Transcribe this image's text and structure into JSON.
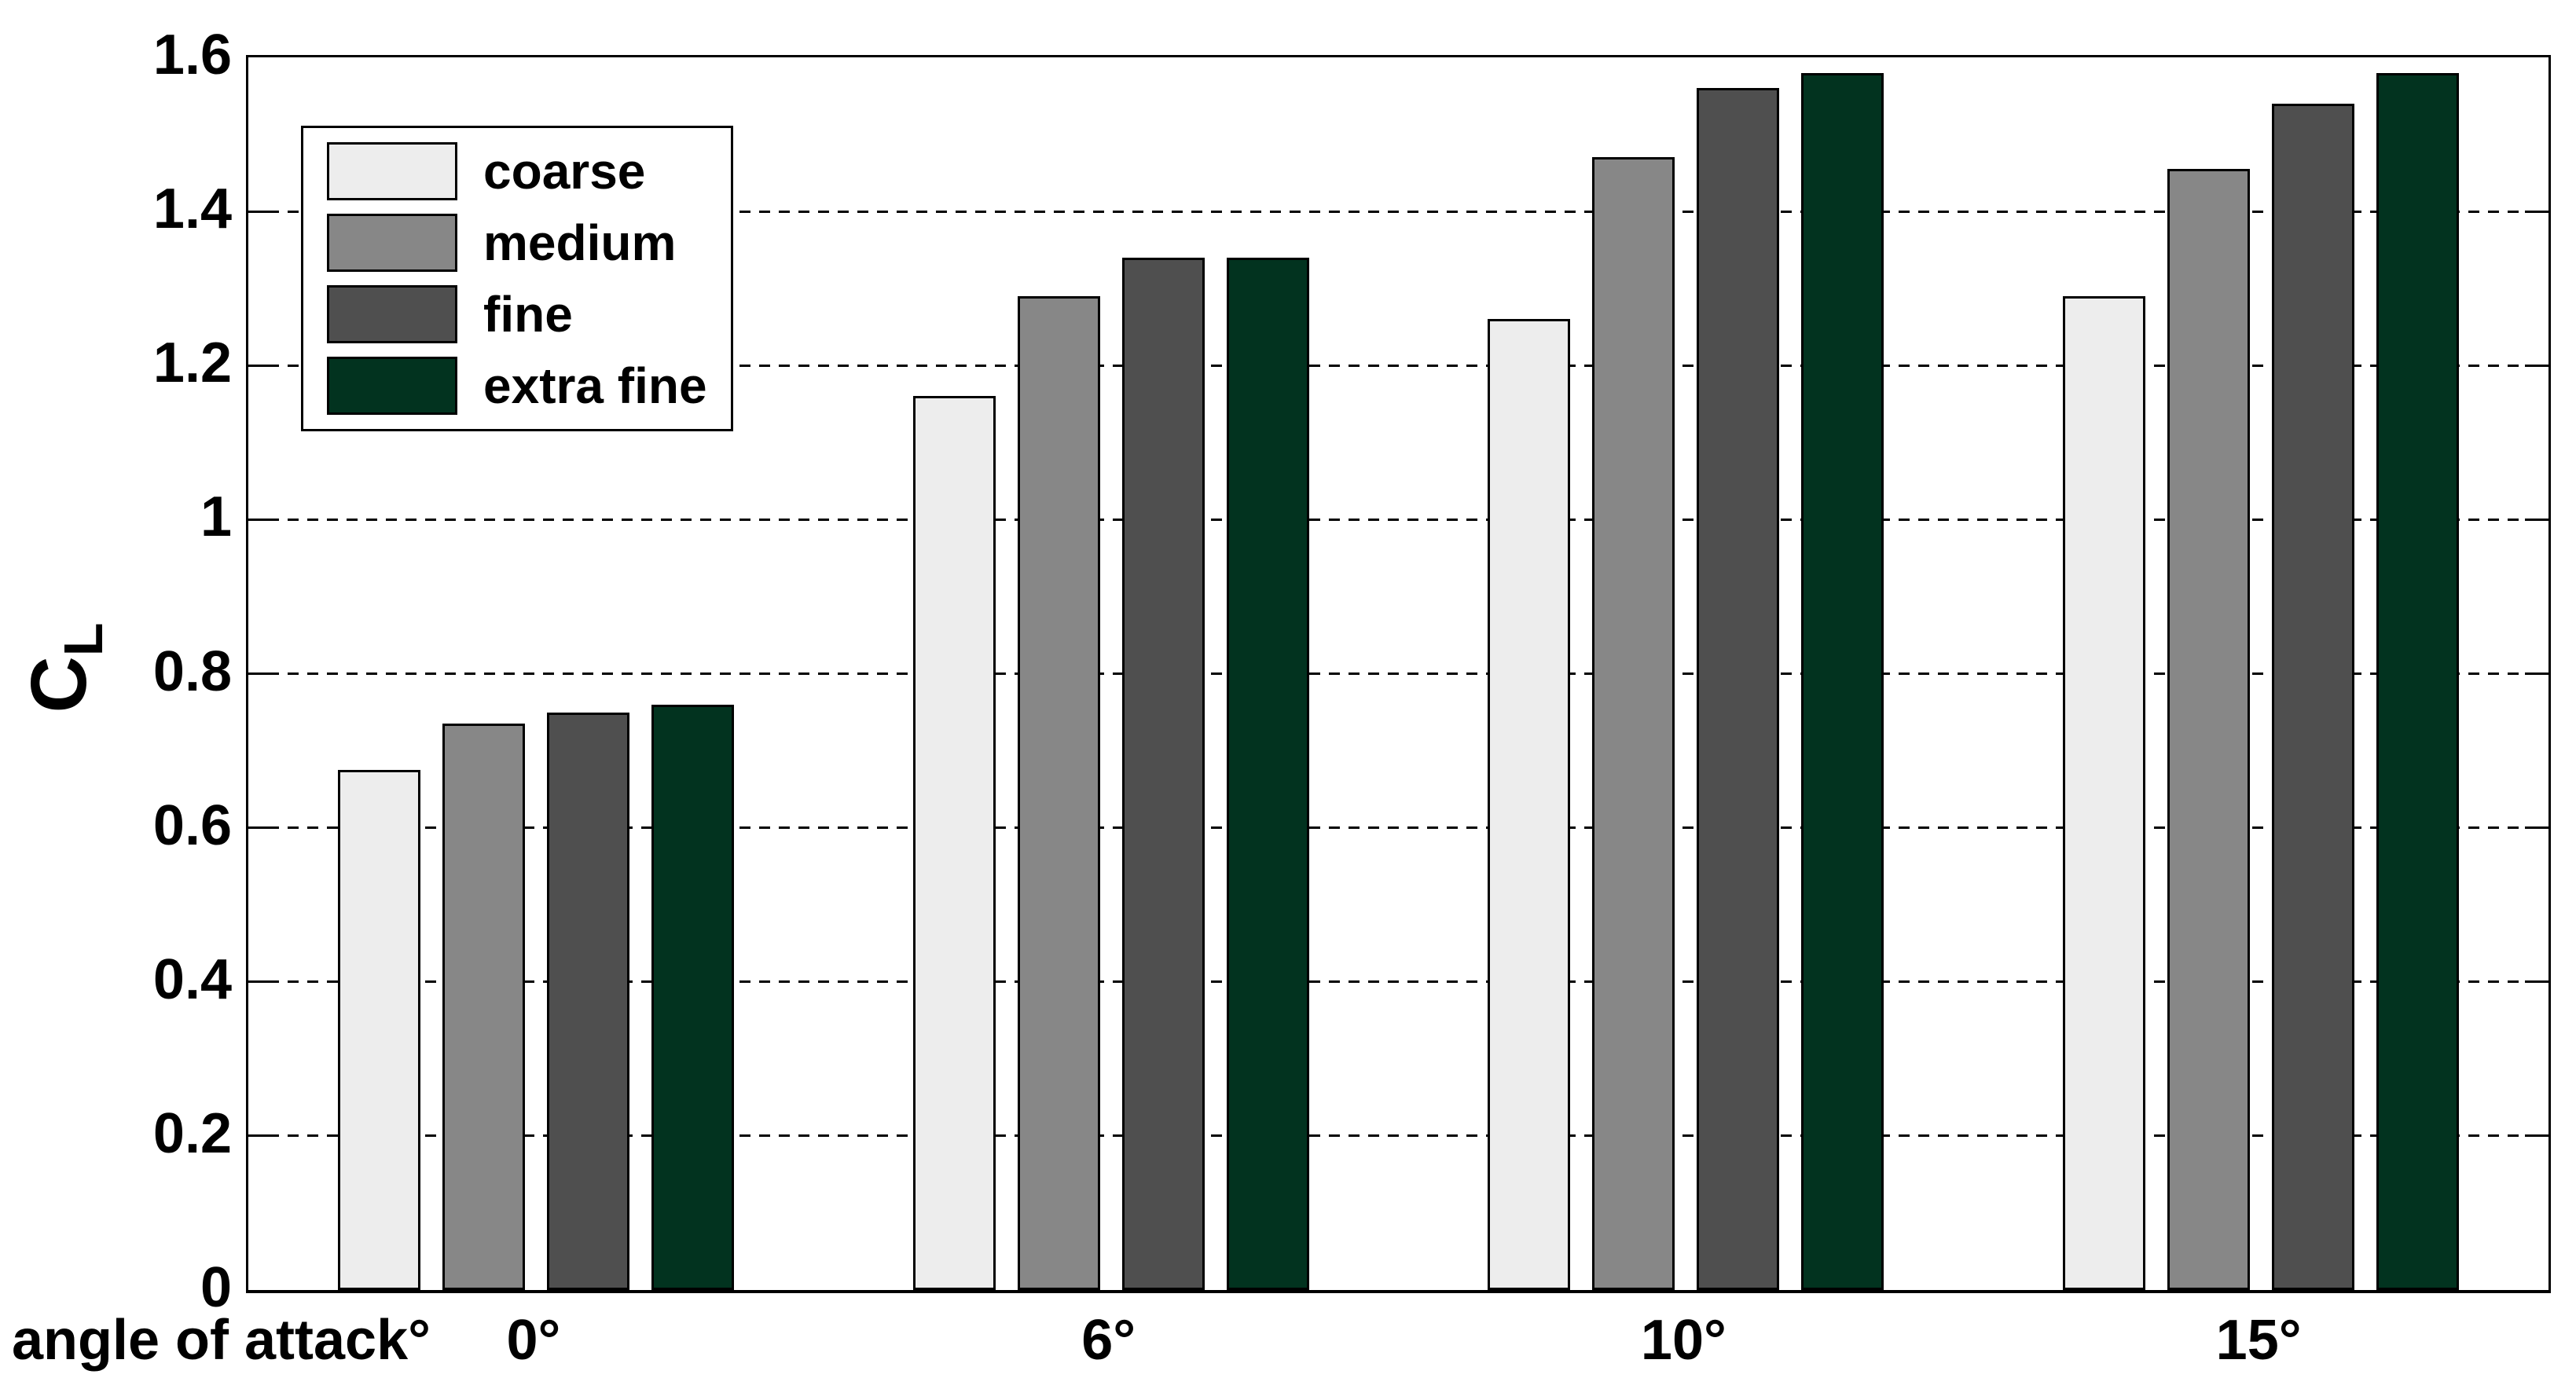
{
  "chart_data": {
    "type": "bar",
    "title": "",
    "xlabel": "angle of attack°",
    "ylabel_base": "C",
    "ylabel_sub": "L",
    "categories": [
      "0°",
      "6°",
      "10°",
      "15°"
    ],
    "series": [
      {
        "name": "coarse",
        "color": "#ededed",
        "values": [
          0.675,
          1.16,
          1.26,
          1.29
        ]
      },
      {
        "name": "medium",
        "color": "#878787",
        "values": [
          0.735,
          1.29,
          1.47,
          1.455
        ]
      },
      {
        "name": "fine",
        "color": "#4f4f4f",
        "values": [
          0.75,
          1.34,
          1.56,
          1.54
        ]
      },
      {
        "name": "extra fine",
        "color": "#02331f",
        "values": [
          0.76,
          1.34,
          1.58,
          1.58
        ]
      }
    ],
    "ylim": [
      0,
      1.6
    ],
    "ytick_values": [
      0,
      0.2,
      0.4,
      0.6,
      0.8,
      1,
      1.2,
      1.4,
      1.6
    ],
    "ytick_labels": [
      "0",
      "0.2",
      "0.4",
      "0.6",
      "0.8",
      "1",
      "1.2",
      "1.4",
      "1.6"
    ],
    "grid": "horizontal-dashed",
    "legend_position": "upper-left",
    "bar_outline": "#000000",
    "text_color": "#000000",
    "background_color": "#ffffff"
  }
}
